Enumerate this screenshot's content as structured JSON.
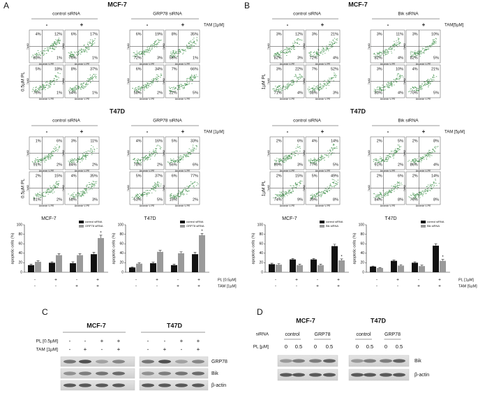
{
  "figure": {
    "panels": [
      {
        "letter": "A",
        "row_label": "0.5µM PL",
        "siRNA": [
          "control  siRNA",
          "GRP78 siRNA"
        ],
        "signs": [
          "-",
          "+",
          "-",
          "+"
        ],
        "sections": [
          {
            "cell_line": "MCF-7",
            "treatment": "TAM [1µM]",
            "plots": [
              [
                [
                  "4%",
                  "12%",
                  "83%",
                  "1%"
                ],
                [
                  "6%",
                  "17%",
                  "76%",
                  "1%"
                ],
                [
                  "6%",
                  "19%",
                  "72%",
                  "3%"
                ],
                [
                  "8%",
                  "35%",
                  "56%",
                  "1%"
                ]
              ],
              [
                [
                  "5%",
                  "18%",
                  "76%",
                  "1%"
                ],
                [
                  "8%",
                  "37%",
                  "54%",
                  "1%"
                ],
                [
                  "6%",
                  "34%",
                  "58%",
                  "2%"
                ],
                [
                  "7%",
                  "66%",
                  "22%",
                  "5%"
                ]
              ]
            ]
          },
          {
            "cell_line": "T47D",
            "treatment": "TAM [1µM]",
            "plots": [
              [
                [
                  "1%",
                  "6%",
                  "91%",
                  "2%"
                ],
                [
                  "3%",
                  "11%",
                  "84%",
                  "2%"
                ],
                [
                  "4%",
                  "16%",
                  "78%",
                  "2%"
                ],
                [
                  "5%",
                  "33%",
                  "56%",
                  "6%"
                ]
              ],
              [
                [
                  "2%",
                  "15%",
                  "81%",
                  "2%"
                ],
                [
                  "4%",
                  "35%",
                  "58%",
                  "3%"
                ],
                [
                  "5%",
                  "37%",
                  "53%",
                  "5%"
                ],
                [
                  "6%",
                  "77%",
                  "15%",
                  "2%"
                ]
              ]
            ]
          }
        ],
        "condition_labels": [
          "PL [0.5µM]",
          "TAM [1µM]"
        ]
      },
      {
        "letter": "B",
        "row_label": "1µM PL",
        "siRNA": [
          "control  siRNA",
          "Bik  siRNA"
        ],
        "signs": [
          "-",
          "+",
          "-",
          "+"
        ],
        "sections": [
          {
            "cell_line": "MCF-7",
            "treatment": "TAM[5µM]",
            "plots": [
              [
                [
                  "3%",
                  "12%",
                  "82%",
                  "3%"
                ],
                [
                  "3%",
                  "21%",
                  "72%",
                  "4%"
                ],
                [
                  "3%",
                  "11%",
                  "82%",
                  "4%"
                ],
                [
                  "3%",
                  "10%",
                  "82%",
                  "5%"
                ]
              ],
              [
                [
                  "3%",
                  "22%",
                  "71%",
                  "4%"
                ],
                [
                  "7%",
                  "52%",
                  "38%",
                  "3%"
                ],
                [
                  "3%",
                  "10%",
                  "83%",
                  "4%"
                ],
                [
                  "4%",
                  "21%",
                  "70%",
                  "5%"
                ]
              ]
            ]
          },
          {
            "cell_line": "T47D",
            "treatment": "TAM [5µM]",
            "plots": [
              [
                [
                  "2%",
                  "6%",
                  "89%",
                  "3%"
                ],
                [
                  "4%",
                  "14%",
                  "77%",
                  "5%"
                ],
                [
                  "2%",
                  "5%",
                  "91%",
                  "2%"
                ],
                [
                  "2%",
                  "8%",
                  "86%",
                  "4%"
                ]
              ],
              [
                [
                  "2%",
                  "15%",
                  "74%",
                  "9%"
                ],
                [
                  "5%",
                  "49%",
                  "39%",
                  "8%"
                ],
                [
                  "2%",
                  "6%",
                  "84%",
                  "8%"
                ],
                [
                  "2%",
                  "14%",
                  "76%",
                  "8%"
                ]
              ]
            ]
          }
        ],
        "condition_labels": [
          "PL [1µM]",
          "TAM [5µM]"
        ]
      }
    ],
    "plot_axes": {
      "x": "Annexin V-PE",
      "y": "7AAD"
    },
    "blot_c": {
      "letter": "C",
      "cell_lines": [
        "MCF-7",
        "T47D"
      ],
      "conditions": [
        {
          "label": "PL [0.5µM]",
          "signs": [
            "-",
            "-",
            "+",
            "+"
          ]
        },
        {
          "label": "TAM [1µM]",
          "signs": [
            "-",
            "+",
            "-",
            "+"
          ]
        }
      ],
      "bands": [
        "GRP78",
        "Bik",
        "β-actin"
      ]
    },
    "blot_d": {
      "letter": "D",
      "cell_lines": [
        "MCF-7",
        "T47D"
      ],
      "siRNA_label": "siRNA",
      "siRNA": [
        "control",
        "GRP78"
      ],
      "dose_label": "PL [µM]",
      "doses": [
        0,
        0.5,
        0,
        0.5
      ],
      "bands": [
        "Bik",
        "β-actin"
      ]
    }
  },
  "chart_data": [
    {
      "type": "bar",
      "title": "MCF-7",
      "ylabel": "apoptotic cells (%)",
      "ylim": [
        0,
        100
      ],
      "yticks": [
        0,
        20,
        40,
        60,
        80,
        100
      ],
      "annotation": "*",
      "conditions": [
        [
          "-",
          "+",
          "-",
          "+"
        ],
        [
          "-",
          "-",
          "+",
          "+"
        ]
      ],
      "series": [
        {
          "name": "control siRNA",
          "color": "#111111",
          "values": [
            15,
            20,
            19,
            38
          ],
          "errors": [
            2,
            2,
            3,
            4
          ]
        },
        {
          "name": "GRP78 siRNA",
          "color": "#9a9a9a",
          "values": [
            22,
            36,
            36,
            72
          ],
          "errors": [
            2,
            3,
            3,
            6
          ]
        }
      ]
    },
    {
      "type": "bar",
      "title": "T47D",
      "ylabel": "apoptotic cells (%)",
      "ylim": [
        0,
        100
      ],
      "yticks": [
        0,
        20,
        40,
        60,
        80,
        100
      ],
      "annotation": "*",
      "conditions": [
        [
          "-",
          "+",
          "-",
          "+"
        ],
        [
          "-",
          "-",
          "+",
          "+"
        ]
      ],
      "series": [
        {
          "name": "control siRNA",
          "color": "#111111",
          "values": [
            10,
            19,
            15,
            38
          ],
          "errors": [
            1,
            2,
            2,
            4
          ]
        },
        {
          "name": "GRP78 siRNA",
          "color": "#9a9a9a",
          "values": [
            18,
            43,
            40,
            78
          ],
          "errors": [
            2,
            3,
            3,
            4
          ]
        }
      ]
    },
    {
      "type": "bar",
      "title": "MCF-7",
      "ylabel": "apoptotic cells (%)",
      "ylim": [
        0,
        100
      ],
      "yticks": [
        0,
        20,
        40,
        60,
        80,
        100
      ],
      "annotation": "*",
      "conditions": [
        [
          "-",
          "+",
          "-",
          "+"
        ],
        [
          "-",
          "-",
          "+",
          "+"
        ]
      ],
      "series": [
        {
          "name": "control siRNA",
          "color": "#111111",
          "values": [
            17,
            27,
            27,
            55
          ],
          "errors": [
            2,
            2,
            2,
            4
          ]
        },
        {
          "name": "Bik siRNA",
          "color": "#9a9a9a",
          "values": [
            16,
            15,
            15,
            25
          ],
          "errors": [
            2,
            2,
            2,
            3
          ]
        }
      ]
    },
    {
      "type": "bar",
      "title": "T47D",
      "ylabel": "apoptotic cells (%)",
      "ylim": [
        0,
        100
      ],
      "yticks": [
        0,
        20,
        40,
        60,
        80,
        100
      ],
      "annotation": "*",
      "conditions": [
        [
          "-",
          "+",
          "-",
          "+"
        ],
        [
          "-",
          "-",
          "+",
          "+"
        ]
      ],
      "series": [
        {
          "name": "control siRNA",
          "color": "#111111",
          "values": [
            12,
            24,
            20,
            56
          ],
          "errors": [
            1,
            2,
            2,
            4
          ]
        },
        {
          "name": "Bik siRNA",
          "color": "#9a9a9a",
          "values": [
            9,
            14,
            13,
            24
          ],
          "errors": [
            1,
            2,
            2,
            3
          ]
        }
      ]
    }
  ]
}
